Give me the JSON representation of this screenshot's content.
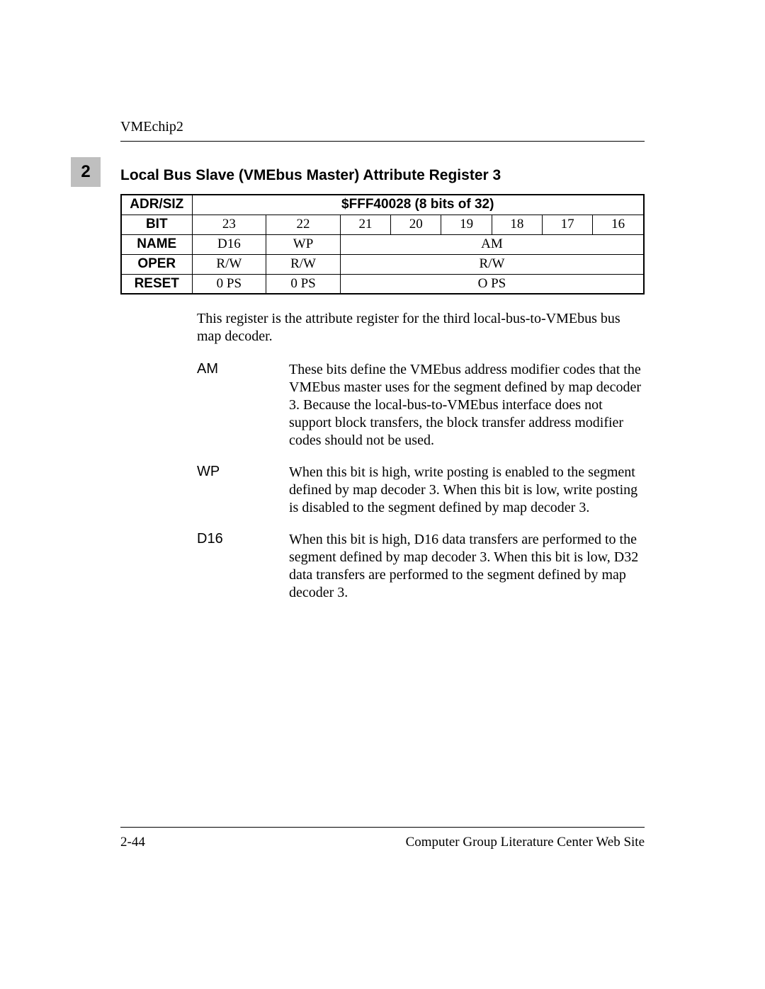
{
  "header": {
    "running": "VMEchip2"
  },
  "chapter": {
    "badge": "2"
  },
  "section": {
    "title": "Local Bus Slave (VMEbus Master) Attribute Register 3"
  },
  "table": {
    "labels": {
      "adr": "ADR/SIZ",
      "bit": "BIT",
      "name": "NAME",
      "oper": "OPER",
      "reset": "RESET"
    },
    "adr_value": "$FFF40028 (8 bits of 32)",
    "bits": [
      "23",
      "22",
      "21",
      "20",
      "19",
      "18",
      "17",
      "16"
    ],
    "name": {
      "c0": "D16",
      "c1": "WP",
      "rest": "AM"
    },
    "oper": {
      "c0": "R/W",
      "c1": "R/W",
      "rest": "R/W"
    },
    "reset": {
      "c0": "0 PS",
      "c1": "0 PS",
      "rest": "O PS"
    }
  },
  "intro": "This register is the attribute register for the third local-bus-to-VMEbus bus map decoder.",
  "defs": [
    {
      "term": "AM",
      "desc": "These bits define the VMEbus address modifier codes that the VMEbus master uses for the segment defined by map decoder 3. Because the local-bus-to-VMEbus interface does not support block transfers, the block transfer address modifier codes should not be used."
    },
    {
      "term": "WP",
      "desc": "When this bit is high, write posting is enabled to the segment defined by map decoder 3. When this bit is low, write posting is disabled to the segment defined by map decoder 3."
    },
    {
      "term": "D16",
      "desc": "When this bit is high, D16 data transfers are performed to the segment defined by map decoder 3. When this bit is low, D32 data transfers are performed to the segment defined by map decoder 3."
    }
  ],
  "footer": {
    "left": "2-44",
    "right": "Computer Group Literature Center Web Site"
  }
}
